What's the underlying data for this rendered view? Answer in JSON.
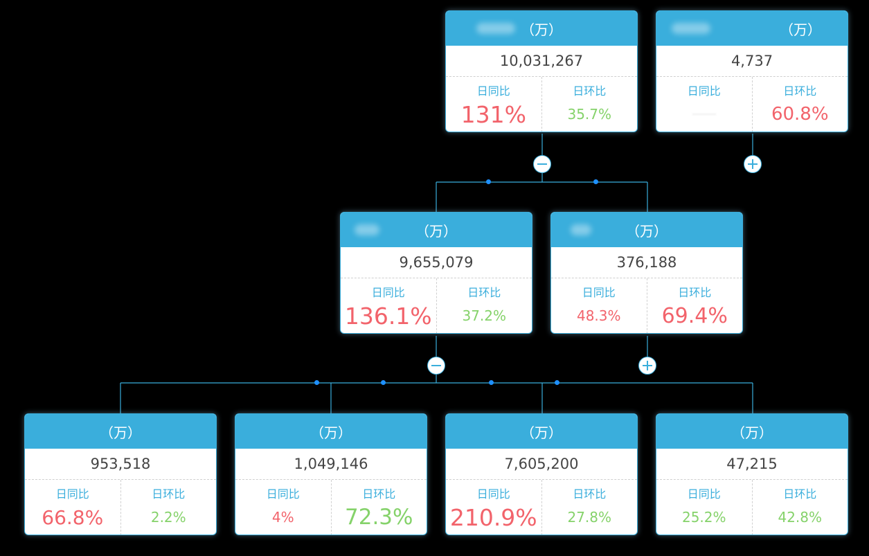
{
  "unit_label": "（万）",
  "metric_labels": {
    "yoy": "日同比",
    "mom": "日环比"
  },
  "colors": {
    "header": "#3aaedc",
    "up": "#f2636b",
    "down": "#85d26a",
    "dot": "#1e90ff"
  },
  "nodes": {
    "root_a": {
      "total": "10,031,267",
      "yoy": "131%",
      "mom": "35.7%"
    },
    "root_b": {
      "total": "4,737",
      "yoy": "",
      "mom": "60.8%"
    },
    "mid_a": {
      "total": "9,655,079",
      "yoy": "136.1%",
      "mom": "37.2%"
    },
    "mid_b": {
      "total": "376,188",
      "yoy": "48.3%",
      "mom": "69.4%"
    },
    "leaf_1": {
      "total": "953,518",
      "yoy": "66.8%",
      "mom": "2.2%"
    },
    "leaf_2": {
      "total": "1,049,146",
      "yoy": "4%",
      "mom": "72.3%"
    },
    "leaf_3": {
      "total": "7,605,200",
      "yoy": "210.9%",
      "mom": "27.8%"
    },
    "leaf_4": {
      "total": "47,215",
      "yoy": "25.2%",
      "mom": "42.8%"
    }
  },
  "toggles": {
    "root_a": "collapse-icon",
    "root_b": "expand-icon",
    "mid_a": "collapse-icon",
    "mid_b": "expand-icon"
  }
}
